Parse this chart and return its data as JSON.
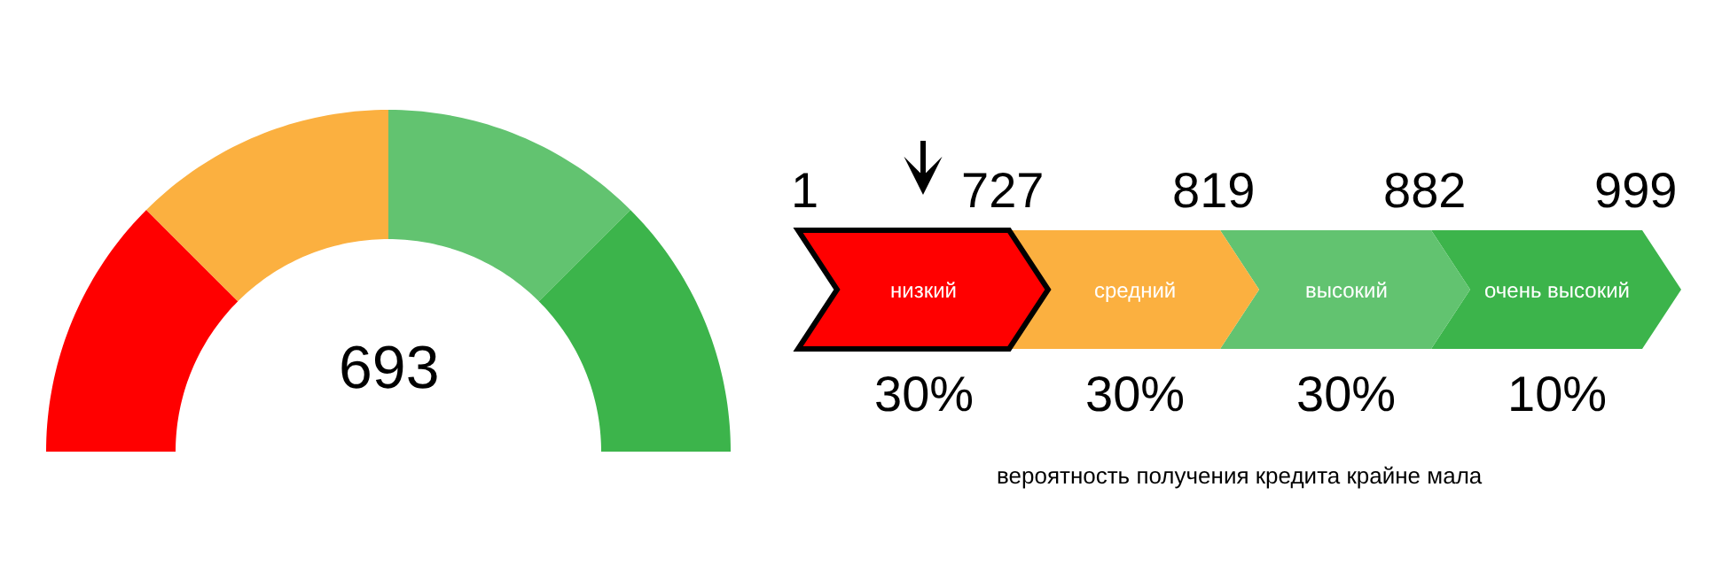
{
  "chart_data": [
    {
      "type": "donut",
      "categories": [
        null,
        null,
        null,
        null
      ],
      "values": [
        25,
        25,
        25,
        25
      ],
      "colors": [
        "#ff0000",
        "#fbb040",
        "#62c370",
        "#3cb44b"
      ],
      "annotations": [
        "693"
      ]
    },
    {
      "type": "other",
      "categories": [
        "низкий",
        "средний",
        "высокий",
        "очень высокий"
      ],
      "colors": [
        "#ff0000",
        "#fbb040",
        "#62c370",
        "#3cb44b"
      ],
      "values": [
        30,
        30,
        30,
        10
      ],
      "value_labels": [
        "30%",
        "30%",
        "30%",
        "10%"
      ],
      "annotations": [
        "1",
        "727",
        "819",
        "882",
        "999",
        "вероятность получения кредита крайне мала"
      ]
    }
  ]
}
